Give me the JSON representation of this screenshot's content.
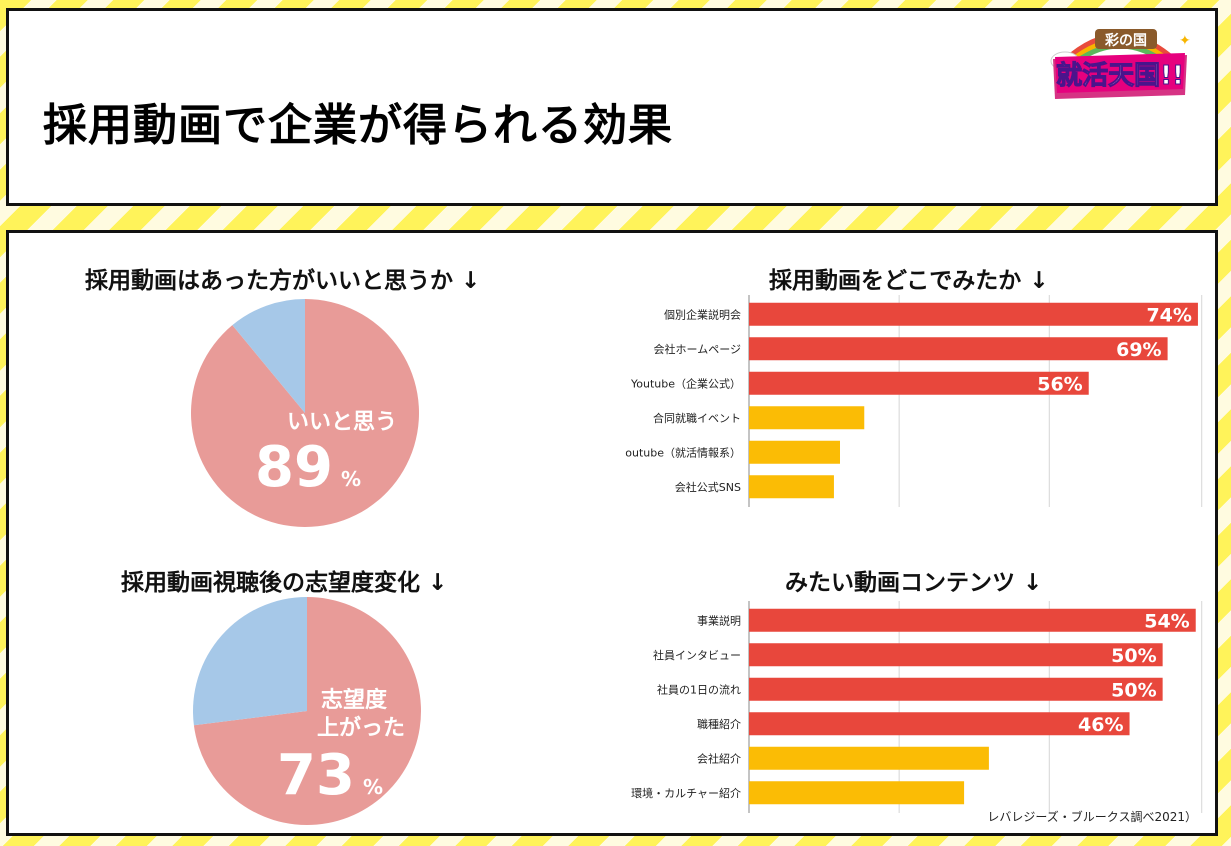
{
  "title": "採用動画で企業が得られる効果",
  "logo": {
    "top": "彩の国",
    "bottom": "就活天国!!"
  },
  "source": "レバレジーズ・ブルークス調べ2021）",
  "colors": {
    "pie_main": "#e89b98",
    "pie_other": "#a6c8e8",
    "bar_red": "#e8473c",
    "bar_yellow": "#fbbc05"
  },
  "pie1": {
    "title": "採用動画はあった方がいいと思うか ↓",
    "label": "いいと思う",
    "value": "89",
    "unit": "%"
  },
  "pie2": {
    "title": "採用動画視聴後の志望度変化 ↓",
    "label_line1": "志望度",
    "label_line2": "上がった",
    "value": "73",
    "unit": "%"
  },
  "bar1": {
    "title": "採用動画をどこでみたか ↓"
  },
  "bar2": {
    "title": "みたい動画コンテンツ ↓"
  },
  "chart_data": [
    {
      "type": "pie",
      "title": "採用動画はあった方がいいと思うか ↓",
      "slices": [
        {
          "label": "いいと思う",
          "value": 89
        },
        {
          "label": "",
          "value": 11
        }
      ]
    },
    {
      "type": "pie",
      "title": "採用動画視聴後の志望度変化 ↓",
      "slices": [
        {
          "label": "志望度上がった",
          "value": 73
        },
        {
          "label": "",
          "value": 27
        }
      ]
    },
    {
      "type": "bar",
      "orientation": "horizontal",
      "title": "採用動画をどこでみたか ↓",
      "categories": [
        "個別企業説明会",
        "会社ホームページ",
        "Youtube（企業公式）",
        "合同就職イベント",
        "outube（就活情報系）",
        "会社公式SNS"
      ],
      "values": [
        74,
        69,
        56,
        19,
        15,
        14
      ],
      "labels": [
        "74%",
        "69%",
        "56%",
        "",
        "",
        ""
      ],
      "colors": [
        "red",
        "red",
        "red",
        "yellow",
        "yellow",
        "yellow"
      ],
      "xlim": [
        0,
        75
      ]
    },
    {
      "type": "bar",
      "orientation": "horizontal",
      "title": "みたい動画コンテンツ ↓",
      "categories": [
        "事業説明",
        "社員インタビュー",
        "社員の1日の流れ",
        "職種紹介",
        "会社紹介",
        "環境・カルチャー紹介"
      ],
      "values": [
        54,
        50,
        50,
        46,
        29,
        26
      ],
      "labels": [
        "54%",
        "50%",
        "50%",
        "46%",
        "",
        ""
      ],
      "colors": [
        "red",
        "red",
        "red",
        "red",
        "yellow",
        "yellow"
      ],
      "xlim": [
        0,
        55
      ]
    }
  ]
}
